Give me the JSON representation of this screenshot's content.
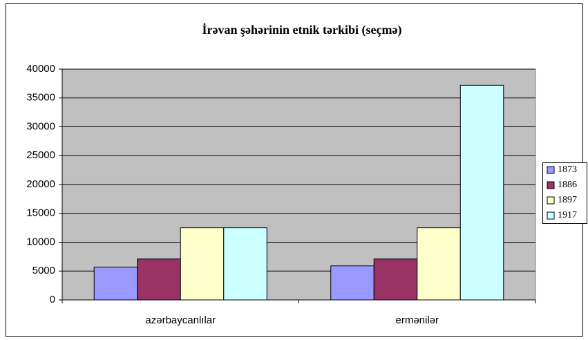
{
  "chart_data": {
    "type": "bar",
    "title": "İrəvan şəhərinin etnik tərkibi (seçmə)",
    "categories": [
      "azərbaycanlılar",
      "ermənilər"
    ],
    "series": [
      {
        "name": "1873",
        "color": "#9999ff",
        "values": [
          5700,
          5900
        ]
      },
      {
        "name": "1886",
        "color": "#993366",
        "values": [
          7100,
          7100
        ]
      },
      {
        "name": "1897",
        "color": "#ffffcc",
        "values": [
          12500,
          12500
        ]
      },
      {
        "name": "1917",
        "color": "#ccffff",
        "values": [
          12500,
          37200
        ]
      }
    ],
    "ylim": [
      0,
      40000
    ],
    "yticks": [
      0,
      5000,
      10000,
      15000,
      20000,
      25000,
      30000,
      35000,
      40000
    ],
    "grid": true,
    "legend": "right"
  }
}
